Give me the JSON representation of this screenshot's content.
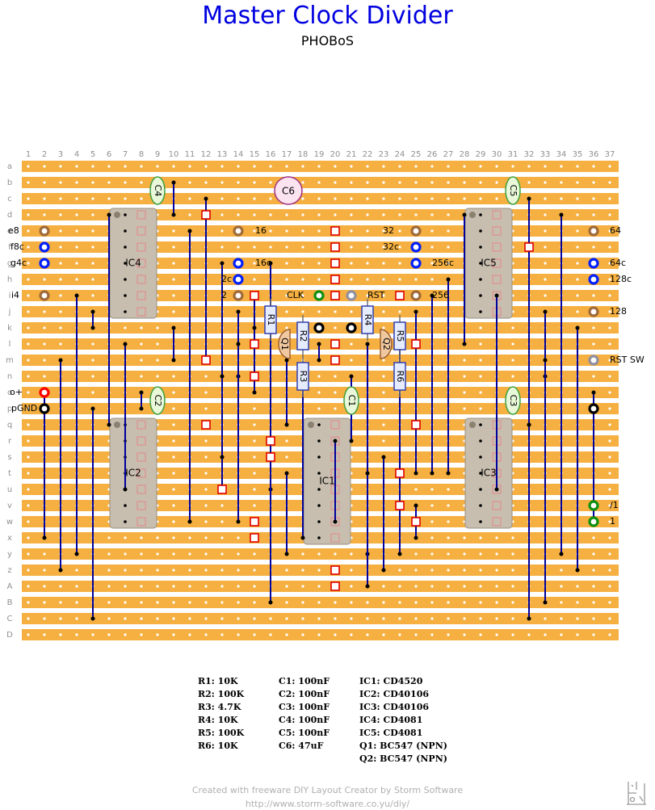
{
  "title": "Master Clock Divider",
  "subtitle": "PHOBoS",
  "columns": [
    "1",
    "2",
    "3",
    "4",
    "5",
    "6",
    "7",
    "8",
    "9",
    "10",
    "11",
    "12",
    "13",
    "14",
    "15",
    "16",
    "17",
    "18",
    "19",
    "20",
    "21",
    "22",
    "23",
    "24",
    "25",
    "26",
    "27",
    "28",
    "29",
    "30",
    "31",
    "32",
    "33",
    "34",
    "35",
    "36",
    "37"
  ],
  "rows": [
    "a",
    "b",
    "c",
    "d",
    "e",
    "f",
    "g",
    "h",
    "i",
    "j",
    "k",
    "l",
    "m",
    "n",
    "o",
    "p",
    "q",
    "r",
    "s",
    "t",
    "u",
    "v",
    "w",
    "x",
    "y",
    "z",
    "A",
    "B",
    "C",
    "D"
  ],
  "colors": {
    "strip": "#f5b041",
    "title": "#0000e0",
    "ic": "#c8beaf",
    "wire": "#00009c",
    "cut": "#e00000"
  },
  "ics": [
    {
      "label": "IC4"
    },
    {
      "label": "IC5"
    },
    {
      "label": "IC2"
    },
    {
      "label": "IC1"
    },
    {
      "label": "IC3"
    }
  ],
  "caps": [
    {
      "label": "C4"
    },
    {
      "label": "C5"
    },
    {
      "label": "C2"
    },
    {
      "label": "C1"
    },
    {
      "label": "C3"
    }
  ],
  "c6": "C6",
  "resistors": [
    {
      "label": "R1"
    },
    {
      "label": "R2"
    },
    {
      "label": "R3"
    },
    {
      "label": "R4"
    },
    {
      "label": "R5"
    },
    {
      "label": "R6"
    }
  ],
  "transistors": [
    {
      "label": "Q1"
    },
    {
      "label": "Q2"
    }
  ],
  "pad_labels": {
    "e8": "e8",
    "f8c": "f8c",
    "g4c": "g4c",
    "i4": "i4",
    "o_plus": "o+",
    "p_gnd": "pGND",
    "p16": "16",
    "p16c": "16c",
    "p2c": "2c",
    "p2": "2",
    "clk": "CLK",
    "rst": "RST",
    "p32": "32",
    "p32c": "32c",
    "p256c": "256c",
    "p256": "256",
    "p64": "64",
    "p64c": "64c",
    "p128c": "128c",
    "p128": "128",
    "rst_sw": "RST SW",
    "div1": "/1",
    "one": "1"
  },
  "bom": {
    "resistors": [
      "R1: 10K",
      "R2: 100K",
      "R3: 4.7K",
      "R4: 10K",
      "R5: 100K",
      "R6: 10K"
    ],
    "capacitors": [
      "C1: 100nF",
      "C2: 100nF",
      "C3: 100nF",
      "C4: 100nF",
      "C5: 100nF",
      "C6: 47uF"
    ],
    "semis": [
      "IC1: CD4520",
      "IC2: CD40106",
      "IC3: CD40106",
      "IC4: CD4081",
      "IC5: CD4081",
      "Q1: BC547 (NPN)",
      "Q2: BC547 (NPN)"
    ]
  },
  "credit_line1": "Created with freeware DIY Layout Creator by Storm Software",
  "credit_line2": "http://www.storm-software.co.yu/diy/"
}
